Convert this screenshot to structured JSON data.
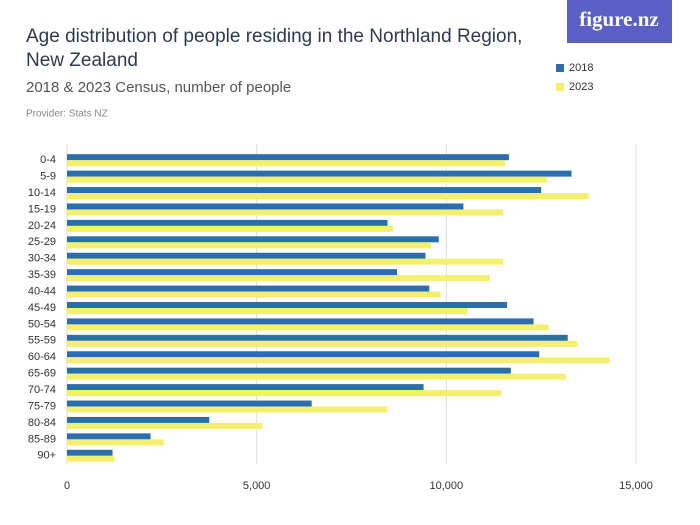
{
  "chart_data": {
    "type": "bar",
    "title": "Age distribution of people residing in the Northland Region, New Zealand",
    "subtitle": "2018 & 2023 Census, number of people",
    "provider": "Provider: Stats NZ",
    "logo": "figure.nz",
    "orientation": "horizontal",
    "categories": [
      "0-4",
      "5-9",
      "10-14",
      "15-19",
      "20-24",
      "25-29",
      "30-34",
      "35-39",
      "40-44",
      "45-49",
      "50-54",
      "55-59",
      "60-64",
      "65-69",
      "70-74",
      "75-79",
      "80-84",
      "85-89",
      "90+"
    ],
    "series": [
      {
        "name": "2018",
        "color": "#2a6ead",
        "values": [
          11650,
          13300,
          12500,
          10450,
          8450,
          9800,
          9450,
          8700,
          9550,
          11600,
          12300,
          13200,
          12450,
          11700,
          9400,
          6450,
          3750,
          2200,
          1200
        ]
      },
      {
        "name": "2023",
        "color": "#f5ef6e",
        "values": [
          11550,
          12650,
          13750,
          11500,
          8600,
          9600,
          11500,
          11150,
          9850,
          10550,
          12700,
          13450,
          14300,
          13150,
          11450,
          8450,
          5150,
          2550,
          1250
        ]
      }
    ],
    "xlim": [
      0,
      15000
    ],
    "xticks": [
      0,
      {
        "value": 5000,
        "label": "5,000"
      },
      {
        "value": 10000,
        "label": "10,000"
      },
      {
        "value": 15000,
        "label": "15,000"
      }
    ],
    "grid": true
  }
}
